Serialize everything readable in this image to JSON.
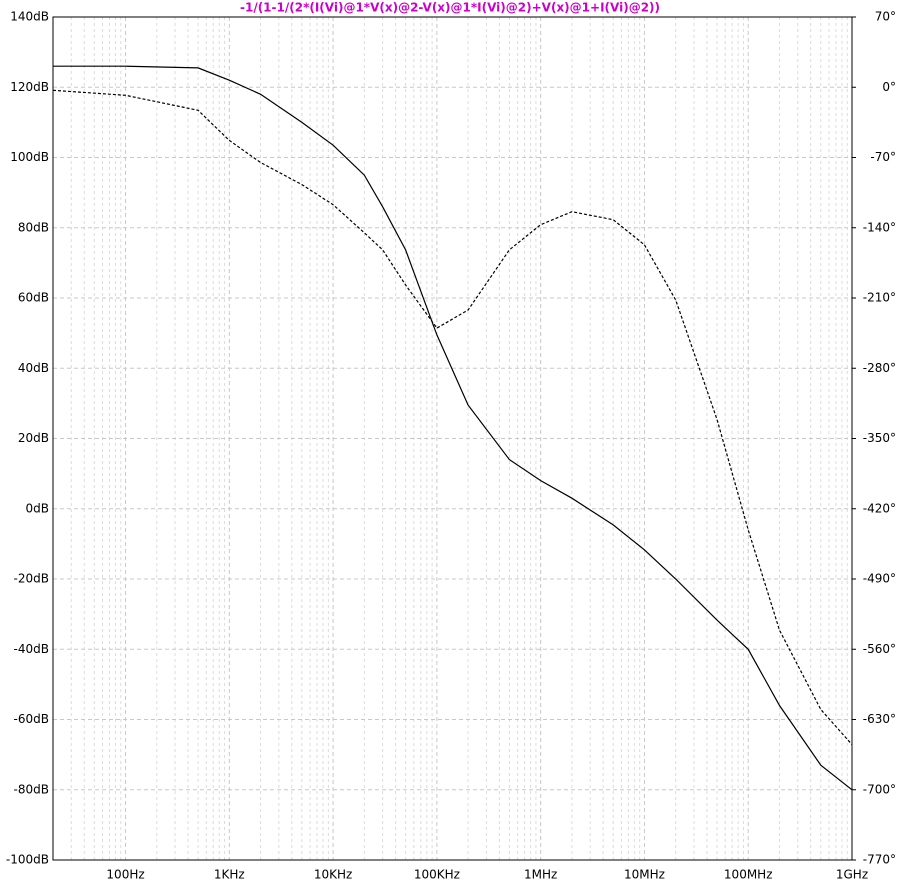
{
  "chart_data": {
    "type": "line",
    "title": "-1/(1-1/(2*(I(Vi)@1*V(x)@2-V(x)@1*I(Vi)@2)+V(x)@1+I(Vi)@2))",
    "title_color": "#cc00cc",
    "x": [
      20,
      100,
      500,
      1000,
      2000,
      5000,
      10000,
      20000,
      30000,
      50000,
      100000,
      200000,
      500000,
      1000000,
      2000000,
      5000000,
      10000000,
      20000000,
      50000000,
      100000000,
      200000000,
      500000000,
      1000000000
    ],
    "series": [
      {
        "color": "#000000",
        "line_style": "solid",
        "axis": "y",
        "values": [
          126,
          126,
          125.5,
          122,
          118,
          110,
          103.5,
          95,
          86,
          73.7,
          49.5,
          29.5,
          14,
          8,
          3,
          -4.6,
          -11.7,
          -20,
          -31.7,
          -40,
          -56,
          -73,
          -80
        ]
      },
      {
        "color": "#000000",
        "line_style": "dashed",
        "axis": "y2",
        "values": [
          -3,
          -8,
          -23,
          -53,
          -75,
          -97,
          -117,
          -145,
          -162,
          -197,
          -240,
          -222,
          -162,
          -137,
          -124,
          -132,
          -157,
          -212,
          -331,
          -441,
          -541,
          -620,
          -655
        ]
      }
    ],
    "xscale": "log",
    "xlim": [
      20,
      1000000000
    ],
    "xticks": [
      {
        "value": 100,
        "label": "100Hz"
      },
      {
        "value": 1000,
        "label": "1KHz"
      },
      {
        "value": 10000,
        "label": "10KHz"
      },
      {
        "value": 100000,
        "label": "100KHz"
      },
      {
        "value": 1000000,
        "label": "1MHz"
      },
      {
        "value": 10000000,
        "label": "10MHz"
      },
      {
        "value": 100000000,
        "label": "100MHz"
      },
      {
        "value": 1000000000,
        "label": "1GHz"
      }
    ],
    "ylim": [
      -100,
      140
    ],
    "yticks": [
      {
        "value": 140,
        "label": "140dB"
      },
      {
        "value": 120,
        "label": "120dB"
      },
      {
        "value": 100,
        "label": "100dB"
      },
      {
        "value": 80,
        "label": "80dB"
      },
      {
        "value": 60,
        "label": "60dB"
      },
      {
        "value": 40,
        "label": "40dB"
      },
      {
        "value": 20,
        "label": "20dB"
      },
      {
        "value": 0,
        "label": "0dB"
      },
      {
        "value": -20,
        "label": "-20dB"
      },
      {
        "value": -40,
        "label": "-40dB"
      },
      {
        "value": -60,
        "label": "-60dB"
      },
      {
        "value": -80,
        "label": "-80dB"
      },
      {
        "value": -100,
        "label": "-100dB"
      }
    ],
    "y2lim": [
      -770,
      70
    ],
    "y2ticks": [
      {
        "value": 70,
        "label": "70°"
      },
      {
        "value": 0,
        "label": "0°"
      },
      {
        "value": -70,
        "label": "-70°"
      },
      {
        "value": -140,
        "label": "-140°"
      },
      {
        "value": -210,
        "label": "-210°"
      },
      {
        "value": -280,
        "label": "-280°"
      },
      {
        "value": -350,
        "label": "-350°"
      },
      {
        "value": -420,
        "label": "-420°"
      },
      {
        "value": -490,
        "label": "-490°"
      },
      {
        "value": -560,
        "label": "-560°"
      },
      {
        "value": -630,
        "label": "-630°"
      },
      {
        "value": -700,
        "label": "-700°"
      },
      {
        "value": -770,
        "label": "-770°"
      }
    ],
    "grid": true,
    "minor_grid": true
  }
}
